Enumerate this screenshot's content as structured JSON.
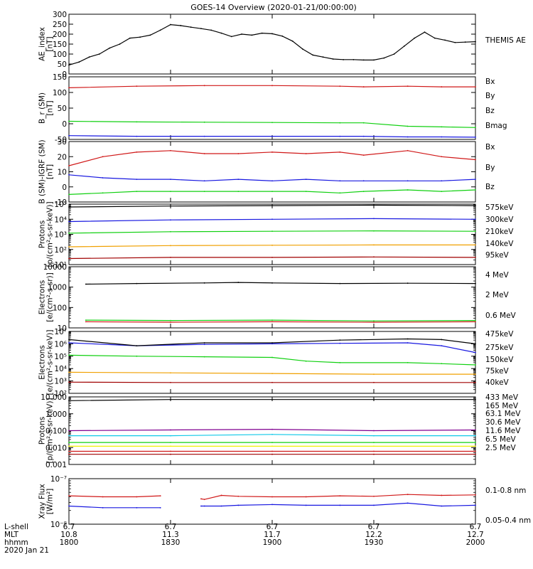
{
  "title": "GOES-14 Overview (2020-01-21/00:00:00)",
  "colors": {
    "black": "#000000",
    "red": "#d01818",
    "green": "#10d010",
    "blue": "#1818e0",
    "orange": "#f0a000",
    "darkred": "#a00000",
    "yellow": "#f0f000",
    "cyan": "#10c8e8",
    "purple": "#800090"
  },
  "chart_data": [
    {
      "type": "line",
      "ylabel": "AE_index\n[nT]",
      "ylim": [
        0,
        300
      ],
      "ticks": [
        "0",
        "50",
        "100",
        "150",
        "200",
        "250",
        "300"
      ],
      "tick_values": [
        0,
        50,
        100,
        150,
        200,
        250,
        300
      ],
      "xlim": [
        0,
        120
      ],
      "series": [
        {
          "name": "THEMIS AE",
          "color": "black",
          "x": [
            0,
            3,
            6,
            9,
            12,
            15,
            18,
            21,
            24,
            27,
            30,
            33,
            36,
            39,
            42,
            45,
            48,
            51,
            54,
            57,
            60,
            63,
            66,
            69,
            72,
            75,
            78,
            81,
            84,
            87,
            90,
            93,
            96,
            99,
            102,
            105,
            108,
            111,
            114,
            117,
            120
          ],
          "values": [
            45,
            60,
            85,
            100,
            130,
            150,
            180,
            185,
            195,
            220,
            248,
            243,
            235,
            228,
            220,
            205,
            188,
            200,
            195,
            205,
            202,
            190,
            165,
            125,
            95,
            85,
            75,
            72,
            72,
            70,
            70,
            80,
            100,
            140,
            180,
            210,
            180,
            170,
            158,
            160,
            162
          ]
        }
      ],
      "legend": [
        {
          "label": "THEMIS AE",
          "color": "black"
        }
      ]
    },
    {
      "type": "line",
      "ylabel": "B_r (SM)\n[nT]",
      "ylim": [
        -50,
        150
      ],
      "ticks": [
        "-50",
        "0",
        "50",
        "100",
        "150"
      ],
      "tick_values": [
        -50,
        0,
        50,
        100,
        150
      ],
      "xlim": [
        0,
        120
      ],
      "series": [
        {
          "name": "Bx",
          "color": "blue",
          "x": [
            0,
            20,
            40,
            60,
            80,
            87,
            92,
            100,
            110,
            120
          ],
          "values": [
            -38,
            -40,
            -40,
            -40,
            -40,
            -40,
            -42,
            -42,
            -42,
            -43
          ]
        },
        {
          "name": "By",
          "color": "green",
          "x": [
            0,
            20,
            40,
            60,
            80,
            87,
            92,
            100,
            110,
            120
          ],
          "values": [
            8,
            6,
            5,
            4,
            3,
            3,
            -5,
            -8,
            -10,
            -12
          ]
        },
        {
          "name": "Bz",
          "color": "red",
          "x": [
            0,
            20,
            40,
            60,
            80,
            87,
            92,
            100,
            110,
            120
          ],
          "values": [
            115,
            120,
            122,
            122,
            120,
            118,
            120,
            120,
            118,
            118
          ]
        }
      ],
      "gap": [
        87,
        93
      ],
      "legend": [
        {
          "label": "Bx",
          "color": "blue"
        },
        {
          "label": "By",
          "color": "green"
        },
        {
          "label": "Bz",
          "color": "red"
        },
        {
          "label": "Bmag",
          "color": "black"
        }
      ]
    },
    {
      "type": "line",
      "ylabel": "B (SM)-IGRF (SM)\n[nT]",
      "ylim": [
        -10,
        30
      ],
      "ticks": [
        "-10",
        "0",
        "10",
        "20",
        "30"
      ],
      "tick_values": [
        -10,
        0,
        10,
        20,
        30
      ],
      "xlim": [
        0,
        120
      ],
      "series": [
        {
          "name": "Bx",
          "color": "blue",
          "x": [
            0,
            10,
            20,
            30,
            40,
            50,
            60,
            70,
            80,
            87,
            92,
            100,
            110,
            120
          ],
          "values": [
            8,
            6,
            5,
            5,
            4,
            5,
            4,
            5,
            4,
            4,
            4,
            4,
            4,
            5
          ]
        },
        {
          "name": "By",
          "color": "green",
          "x": [
            0,
            10,
            20,
            30,
            40,
            50,
            60,
            70,
            80,
            87,
            92,
            100,
            110,
            120
          ],
          "values": [
            -5,
            -4,
            -3,
            -3,
            -3,
            -3,
            -3,
            -3,
            -4,
            -3,
            -2,
            -2,
            -3,
            -2
          ]
        },
        {
          "name": "Bz",
          "color": "red",
          "x": [
            0,
            10,
            20,
            30,
            40,
            50,
            60,
            70,
            80,
            87,
            92,
            100,
            110,
            120
          ],
          "values": [
            14,
            20,
            23,
            24,
            22,
            22,
            23,
            22,
            23,
            21,
            21,
            24,
            20,
            18
          ]
        }
      ],
      "gap": [
        87,
        93
      ],
      "legend": [
        {
          "label": "Bx",
          "color": "blue"
        },
        {
          "label": "By",
          "color": "green"
        },
        {
          "label": "Bz",
          "color": "red"
        }
      ]
    },
    {
      "type": "line",
      "scale": "log",
      "ylabel": "Protons\n[p/(cm²-s-sr-keV)]",
      "ylim": [
        10,
        100000
      ],
      "ticks": [
        "10¹",
        "10²",
        "10³",
        "10⁴",
        "10⁵"
      ],
      "tick_values": [
        10,
        100,
        1000,
        10000,
        100000
      ],
      "xlim": [
        0,
        120
      ],
      "series": [
        {
          "name": "575keV",
          "color": "darkred",
          "x": [
            0,
            30,
            60,
            90,
            120
          ],
          "values": [
            25,
            30,
            30,
            32,
            30
          ]
        },
        {
          "name": "300keV",
          "color": "orange",
          "x": [
            0,
            30,
            60,
            90,
            120
          ],
          "values": [
            150,
            180,
            190,
            200,
            200
          ]
        },
        {
          "name": "210keV",
          "color": "green",
          "x": [
            0,
            30,
            60,
            90,
            120
          ],
          "values": [
            1200,
            1500,
            1600,
            1700,
            1600
          ]
        },
        {
          "name": "140keV",
          "color": "blue",
          "x": [
            0,
            30,
            60,
            90,
            120
          ],
          "values": [
            7000,
            9000,
            10000,
            11000,
            10000
          ]
        },
        {
          "name": "95keV",
          "color": "black",
          "x": [
            0,
            30,
            60,
            90,
            120
          ],
          "values": [
            65000,
            75000,
            80000,
            85000,
            80000
          ]
        }
      ],
      "legend": [
        {
          "label": "575keV",
          "color": "darkred"
        },
        {
          "label": "300keV",
          "color": "orange"
        },
        {
          "label": "210keV",
          "color": "green"
        },
        {
          "label": "140keV",
          "color": "blue"
        },
        {
          "label": "95keV",
          "color": "black"
        }
      ]
    },
    {
      "type": "line",
      "scale": "log",
      "ylabel": "Electrons\n[e/(cm²-s-sr)]",
      "ylim": [
        10,
        10000
      ],
      "ticks": [
        "10",
        "100",
        "1000",
        "10000"
      ],
      "tick_values": [
        10,
        100,
        1000,
        10000
      ],
      "xlim": [
        0,
        120
      ],
      "series": [
        {
          "name": "4 MeV",
          "color": "red",
          "x": [
            5,
            30,
            60,
            90,
            120
          ],
          "values": [
            20,
            19,
            20,
            19,
            20
          ]
        },
        {
          "name": "2 MeV",
          "color": "green",
          "x": [
            5,
            30,
            60,
            90,
            120
          ],
          "values": [
            24,
            23,
            24,
            22,
            23
          ]
        },
        {
          "name": "0.6 MeV",
          "color": "black",
          "x": [
            5,
            20,
            40,
            50,
            60,
            80,
            100,
            120
          ],
          "values": [
            1400,
            1500,
            1600,
            1700,
            1600,
            1500,
            1550,
            1500
          ]
        }
      ],
      "legend": [
        {
          "label": "4 MeV",
          "color": "darkred"
        },
        {
          "label": "2 MeV",
          "color": "green"
        },
        {
          "label": "0.6 MeV",
          "color": "black"
        }
      ]
    },
    {
      "type": "line",
      "scale": "log",
      "ylabel": "Electrons\n[e/(cm²-s-sr-keV)]",
      "ylim": [
        100,
        10000000
      ],
      "ticks": [
        "10²",
        "10³",
        "10⁴",
        "10⁵",
        "10⁶",
        "10⁷"
      ],
      "tick_values": [
        100,
        1000,
        10000,
        100000,
        1000000,
        10000000
      ],
      "xlim": [
        0,
        120
      ],
      "series": [
        {
          "name": "475keV",
          "color": "darkred",
          "x": [
            0,
            30,
            60,
            90,
            120
          ],
          "values": [
            800,
            750,
            750,
            750,
            750
          ]
        },
        {
          "name": "275keV",
          "color": "orange",
          "x": [
            0,
            30,
            60,
            90,
            120
          ],
          "values": [
            5000,
            4500,
            4000,
            3500,
            3500
          ]
        },
        {
          "name": "150keV",
          "color": "green",
          "x": [
            0,
            20,
            40,
            60,
            70,
            80,
            100,
            110,
            120
          ],
          "values": [
            120000,
            100000,
            90000,
            80000,
            40000,
            30000,
            30000,
            25000,
            20000
          ]
        },
        {
          "name": "75keV",
          "color": "blue",
          "x": [
            0,
            20,
            40,
            60,
            80,
            100,
            110,
            120
          ],
          "values": [
            1200000,
            700000,
            900000,
            1000000,
            1100000,
            1200000,
            700000,
            200000
          ]
        },
        {
          "name": "40keV",
          "color": "black",
          "x": [
            0,
            20,
            40,
            60,
            80,
            100,
            110,
            120
          ],
          "values": [
            2200000,
            700000,
            1200000,
            1200000,
            2000000,
            2500000,
            2200000,
            1000000
          ]
        }
      ],
      "legend": [
        {
          "label": "475keV",
          "color": "darkred"
        },
        {
          "label": "275keV",
          "color": "orange"
        },
        {
          "label": "150keV",
          "color": "green"
        },
        {
          "label": "75keV",
          "color": "blue"
        },
        {
          "label": "40keV",
          "color": "black"
        }
      ]
    },
    {
      "type": "line",
      "scale": "log",
      "ylabel": "Protons\n[p/(cm²-s-sr-keV)]",
      "ylim": [
        0.001,
        10
      ],
      "ticks": [
        "0.001",
        "0.010",
        "0.100",
        "1.000",
        "10.000"
      ],
      "tick_values": [
        0.001,
        0.01,
        0.1,
        1,
        10
      ],
      "xlim": [
        0,
        120
      ],
      "series": [
        {
          "name": "433 MeV",
          "color": "darkred",
          "x": [
            0,
            30,
            60,
            90,
            120
          ],
          "values": [
            0.004,
            0.004,
            0.004,
            0.004,
            0.004
          ]
        },
        {
          "name": "165 MeV",
          "color": "red",
          "x": [
            0,
            30,
            60,
            90,
            120
          ],
          "values": [
            0.006,
            0.006,
            0.006,
            0.006,
            0.006
          ]
        },
        {
          "name": "63.1 MeV",
          "color": "yellow",
          "x": [
            0,
            30,
            60,
            90,
            120
          ],
          "values": [
            0.012,
            0.012,
            0.012,
            0.012,
            0.012
          ]
        },
        {
          "name": "30.6 MeV",
          "color": "green",
          "x": [
            0,
            30,
            60,
            90,
            120
          ],
          "values": [
            0.02,
            0.02,
            0.02,
            0.02,
            0.02
          ]
        },
        {
          "name": "11.6 MeV",
          "color": "cyan",
          "x": [
            0,
            30,
            60,
            90,
            120
          ],
          "values": [
            0.05,
            0.05,
            0.06,
            0.05,
            0.05
          ]
        },
        {
          "name": "6.5 MeV",
          "color": "purple",
          "x": [
            0,
            30,
            60,
            90,
            120
          ],
          "values": [
            0.1,
            0.11,
            0.12,
            0.1,
            0.11
          ]
        },
        {
          "name": "2.5 MeV",
          "color": "black",
          "x": [
            0,
            30,
            60,
            90,
            120
          ],
          "values": [
            6,
            7,
            7,
            7,
            7
          ]
        }
      ],
      "legend": [
        {
          "label": "433 MeV",
          "color": "darkred"
        },
        {
          "label": "165 MeV",
          "color": "red"
        },
        {
          "label": "63.1 MeV",
          "color": "yellow"
        },
        {
          "label": "30.6 MeV",
          "color": "green"
        },
        {
          "label": "11.6 MeV",
          "color": "cyan"
        },
        {
          "label": "6.5 MeV",
          "color": "purple"
        },
        {
          "label": "2.5 MeV",
          "color": "black"
        }
      ]
    },
    {
      "type": "line",
      "scale": "log",
      "ylabel": "Xray Flux\n[W/m²]",
      "ylim": [
        1e-08,
        1e-07
      ],
      "ticks": [
        "10⁻⁸",
        "10⁻⁷"
      ],
      "tick_values": [
        1e-08,
        1e-07
      ],
      "xlim": [
        0,
        120
      ],
      "series": [
        {
          "name": "0.1-0.8 nm",
          "color": "red",
          "x": [
            0,
            10,
            20,
            27,
            39,
            40,
            45,
            50,
            60,
            70,
            80,
            90,
            100,
            110,
            120
          ],
          "values": [
            4.2e-08,
            4e-08,
            4e-08,
            4.2e-08,
            3.6e-08,
            3.5e-08,
            4.3e-08,
            4.1e-08,
            4e-08,
            4e-08,
            4.2e-08,
            4.1e-08,
            4.5e-08,
            4.3e-08,
            4.4e-08
          ]
        },
        {
          "name": "0.05-0.4 nm",
          "color": "blue",
          "x": [
            0,
            10,
            20,
            27,
            39,
            40,
            45,
            50,
            60,
            70,
            80,
            90,
            100,
            110,
            120
          ],
          "values": [
            2.5e-08,
            2.3e-08,
            2.3e-08,
            2.3e-08,
            2.5e-08,
            2.5e-08,
            2.5e-08,
            2.6e-08,
            2.7e-08,
            2.6e-08,
            2.6e-08,
            2.6e-08,
            2.9e-08,
            2.5e-08,
            2.6e-08
          ]
        }
      ],
      "gap": [
        27,
        38
      ],
      "legend": [
        {
          "label": "0.1-0.8 nm",
          "color": "red"
        },
        {
          "label": "0.05-0.4 nm",
          "color": "blue"
        }
      ]
    }
  ],
  "x_axis": {
    "row_labels": [
      "L-shell",
      "MLT",
      "hhmm",
      "2020 Jan 21"
    ],
    "ticks": [
      {
        "x": 0,
        "lshell": "6.7",
        "mlt": "10.8",
        "hhmm": "1800"
      },
      {
        "x": 30,
        "lshell": "6.7",
        "mlt": "11.3",
        "hhmm": "1830"
      },
      {
        "x": 60,
        "lshell": "6.7",
        "mlt": "11.7",
        "hhmm": "1900"
      },
      {
        "x": 90,
        "lshell": "6.7",
        "mlt": "12.2",
        "hhmm": "1930"
      },
      {
        "x": 120,
        "lshell": "6.7",
        "mlt": "12.7",
        "hhmm": "2000"
      }
    ]
  }
}
